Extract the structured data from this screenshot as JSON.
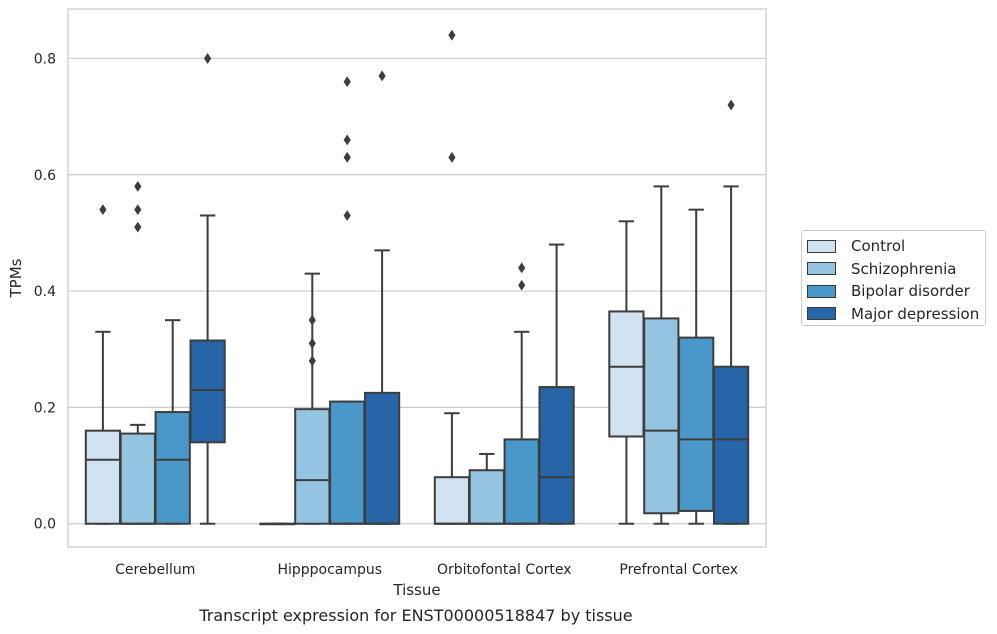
{
  "caption": "Transcript expression for ENST00000518847 by tissue",
  "chart_data": {
    "type": "box",
    "xlabel": "Tissue",
    "ylabel": "TPMs",
    "ylim": [
      -0.04,
      0.885
    ],
    "yticks": [
      0.0,
      0.2,
      0.4,
      0.6,
      0.8
    ],
    "ytick_labels": [
      "0.0",
      "0.2",
      "0.4",
      "0.6",
      "0.8"
    ],
    "grid": "horizontal",
    "legend_position": "right",
    "categories": [
      "Cerebellum",
      "Hipppocampus",
      "Orbitofontal Cortex",
      "Prefrontal Cortex"
    ],
    "series": [
      {
        "name": "Control",
        "color": "#d0e1f2",
        "boxes": [
          {
            "whislo": 0.0,
            "q1": 0.0,
            "med": 0.11,
            "q3": 0.16,
            "whishi": 0.33,
            "fliers": [
              0.54
            ]
          },
          {
            "whislo": 0.0,
            "q1": 0.0,
            "med": 0.0,
            "q3": 0.0,
            "whishi": 0.0,
            "fliers": []
          },
          {
            "whislo": 0.0,
            "q1": 0.0,
            "med": 0.0,
            "q3": 0.08,
            "whishi": 0.19,
            "fliers": [
              0.63,
              0.84
            ]
          },
          {
            "whislo": 0.0,
            "q1": 0.15,
            "med": 0.27,
            "q3": 0.365,
            "whishi": 0.52,
            "fliers": []
          }
        ]
      },
      {
        "name": "Schizophrenia",
        "color": "#94c4df",
        "boxes": [
          {
            "whislo": 0.0,
            "q1": 0.0,
            "med": 0.0,
            "q3": 0.155,
            "whishi": 0.17,
            "fliers": [
              0.51,
              0.54,
              0.58
            ]
          },
          {
            "whislo": 0.0,
            "q1": 0.0,
            "med": 0.075,
            "q3": 0.197,
            "whishi": 0.43,
            "fliers": [
              0.28,
              0.31,
              0.35
            ]
          },
          {
            "whislo": 0.0,
            "q1": 0.0,
            "med": 0.0,
            "q3": 0.092,
            "whishi": 0.12,
            "fliers": []
          },
          {
            "whislo": 0.0,
            "q1": 0.018,
            "med": 0.16,
            "q3": 0.353,
            "whishi": 0.58,
            "fliers": []
          }
        ]
      },
      {
        "name": "Bipolar disorder",
        "color": "#4a98c9",
        "boxes": [
          {
            "whislo": 0.0,
            "q1": 0.0,
            "med": 0.11,
            "q3": 0.192,
            "whishi": 0.35,
            "fliers": []
          },
          {
            "whislo": 0.0,
            "q1": 0.0,
            "med": 0.0,
            "q3": 0.21,
            "whishi": 0.21,
            "fliers": [
              0.53,
              0.63,
              0.66,
              0.76
            ]
          },
          {
            "whislo": 0.0,
            "q1": 0.0,
            "med": 0.0,
            "q3": 0.145,
            "whishi": 0.33,
            "fliers": [
              0.41,
              0.44
            ]
          },
          {
            "whislo": 0.0,
            "q1": 0.022,
            "med": 0.145,
            "q3": 0.32,
            "whishi": 0.54,
            "fliers": []
          }
        ]
      },
      {
        "name": "Major depression",
        "color": "#2565a8",
        "boxes": [
          {
            "whislo": 0.0,
            "q1": 0.14,
            "med": 0.23,
            "q3": 0.315,
            "whishi": 0.53,
            "fliers": [
              0.8
            ]
          },
          {
            "whislo": 0.0,
            "q1": 0.0,
            "med": 0.0,
            "q3": 0.225,
            "whishi": 0.47,
            "fliers": [
              0.77
            ]
          },
          {
            "whislo": 0.0,
            "q1": 0.0,
            "med": 0.08,
            "q3": 0.235,
            "whishi": 0.48,
            "fliers": []
          },
          {
            "whislo": 0.0,
            "q1": 0.0,
            "med": 0.145,
            "q3": 0.27,
            "whishi": 0.58,
            "fliers": [
              0.72
            ]
          }
        ]
      }
    ]
  }
}
